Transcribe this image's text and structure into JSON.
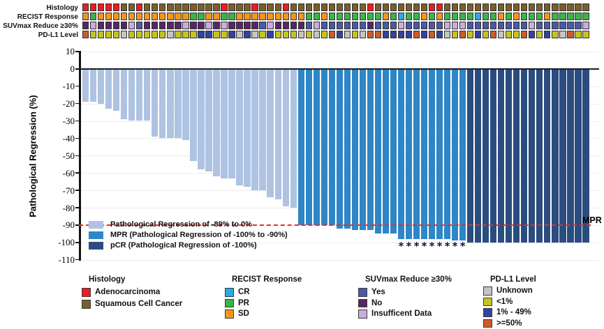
{
  "figure": {
    "type": "waterfall-plot-with-annotation-tracks"
  },
  "annotation_tracks": {
    "rows": [
      {
        "id": "histology",
        "label": "Histology",
        "values": [
          "A",
          "A",
          "A",
          "A",
          "A",
          "S",
          "S",
          "A",
          "S",
          "S",
          "S",
          "S",
          "S",
          "S",
          "S",
          "S",
          "S",
          "S",
          "A",
          "S",
          "S",
          "S",
          "A",
          "S",
          "S",
          "S",
          "A",
          "S",
          "S",
          "S",
          "S",
          "S",
          "S",
          "S",
          "S",
          "S",
          "S",
          "A",
          "S",
          "S",
          "S",
          "S",
          "S",
          "S",
          "S",
          "A",
          "A",
          "S",
          "S",
          "S",
          "S",
          "S",
          "S",
          "S",
          "S",
          "S",
          "S",
          "S",
          "S",
          "S",
          "S",
          "S",
          "S",
          "S",
          "S",
          "S"
        ]
      },
      {
        "id": "recist",
        "label": "RECIST Response",
        "values": [
          "SD",
          "PR",
          "SD",
          "SD",
          "SD",
          "SD",
          "SD",
          "SD",
          "SD",
          "SD",
          "SD",
          "SD",
          "SD",
          "SD",
          "PR",
          "PR",
          "SD",
          "SD",
          "PR",
          "PR",
          "SD",
          "SD",
          "SD",
          "SD",
          "SD",
          "SD",
          "SD",
          "SD",
          "SD",
          "PR",
          "PR",
          "SD",
          "PR",
          "PR",
          "PR",
          "PR",
          "PR",
          "PR",
          "PR",
          "SD",
          "PR",
          "CR",
          "PR",
          "PR",
          "SD",
          "PR",
          "SD",
          "PR",
          "PR",
          "PR",
          "PR",
          "CR",
          "PR",
          "PR",
          "SD",
          "PR",
          "SD",
          "PR",
          "PR",
          "PR",
          "SD",
          "PR",
          "PR",
          "PR",
          "PR",
          "PR"
        ]
      },
      {
        "id": "suvmax",
        "label": "SUVmax Reduce ≥30%",
        "values": [
          "N",
          "I",
          "N",
          "N",
          "N",
          "N",
          "I",
          "Y",
          "N",
          "N",
          "N",
          "N",
          "N",
          "I",
          "N",
          "N",
          "I",
          "N",
          "I",
          "N",
          "N",
          "N",
          "N",
          "Y",
          "I",
          "N",
          "N",
          "N",
          "N",
          "Y",
          "I",
          "Y",
          "Y",
          "Y",
          "Y",
          "Y",
          "Y",
          "N",
          "Y",
          "Y",
          "Y",
          "I",
          "Y",
          "Y",
          "Y",
          "Y",
          "Y",
          "I",
          "I",
          "I",
          "Y",
          "Y",
          "Y",
          "Y",
          "Y",
          "Y",
          "Y",
          "Y",
          "I",
          "Y",
          "Y",
          "Y",
          "Y",
          "Y",
          "Y",
          "I"
        ]
      },
      {
        "id": "pdl1",
        "label": "PD-L1 Level",
        "values": [
          "H",
          "L",
          "L",
          "L",
          "L",
          "U",
          "L",
          "L",
          "L",
          "L",
          "L",
          "U",
          "L",
          "L",
          "L",
          "M",
          "M",
          "L",
          "L",
          "M",
          "U",
          "M",
          "U",
          "L",
          "M",
          "L",
          "L",
          "L",
          "U",
          "L",
          "U",
          "L",
          "H",
          "M",
          "U",
          "L",
          "U",
          "H",
          "H",
          "M",
          "M",
          "M",
          "M",
          "H",
          "M",
          "H",
          "M",
          "U",
          "L",
          "H",
          "L",
          "M",
          "L",
          "H",
          "U",
          "L",
          "L",
          "H",
          "M",
          "L",
          "M",
          "L",
          "U",
          "H",
          "L",
          "L"
        ]
      }
    ],
    "palettes": {
      "histology": {
        "A": "#EC1C24",
        "S": "#7B5F2B"
      },
      "recist": {
        "CR": "#29ABE2",
        "PR": "#39B54A",
        "SD": "#F7941D"
      },
      "suvmax": {
        "Y": "#4A5AA8",
        "N": "#562765",
        "I": "#C9ADDC"
      },
      "pdl1": {
        "U": "#C4C4C4",
        "L": "#C3C41E",
        "M": "#33429E",
        "H": "#CE5B2B"
      }
    }
  },
  "chart_data": {
    "type": "bar",
    "title": "",
    "xlabel": "",
    "ylabel": "Pathological Regression (%)",
    "ylim": [
      10,
      -110
    ],
    "yticks": [
      10,
      0,
      -10,
      -20,
      -30,
      -40,
      -50,
      -60,
      -70,
      -80,
      -90,
      -100,
      -110
    ],
    "grid": true,
    "n_patients": 66,
    "values": [
      -19,
      -19,
      -20,
      -23,
      -24,
      -29,
      -30,
      -30,
      -30,
      -39,
      -40,
      -40,
      -40,
      -41,
      -53,
      -58,
      -59,
      -62,
      -63,
      -63,
      -67,
      -68,
      -70,
      -70,
      -74,
      -75,
      -79,
      -80,
      -90,
      -90,
      -90,
      -90,
      -90,
      -92,
      -92,
      -93,
      -93,
      -93,
      -95,
      -95,
      -95,
      -98,
      -98,
      -98,
      -98,
      -98,
      -98,
      -98,
      -99,
      -99,
      -100,
      -100,
      -100,
      -100,
      -100,
      -100,
      -100,
      -100,
      -100,
      -100,
      -100,
      -100,
      -100,
      -100,
      -100,
      -100
    ],
    "group_thresholds": {
      "mpr_max": -90,
      "pcr_value": -100
    },
    "bar_colors": {
      "partial": "#AEC3E2",
      "mpr": "#2E86C6",
      "pcr": "#2B4C7E"
    },
    "legend": [
      {
        "key": "partial",
        "label": "Pathological Regression of -89% to 0%",
        "color": "#AEC3E2"
      },
      {
        "key": "mpr",
        "label": "MPR (Pathological Regression of -100% to -90%)",
        "color": "#2E86C6"
      },
      {
        "key": "pcr",
        "label": "pCR (Pathological Regression of -100%)",
        "color": "#2B4C7E"
      }
    ],
    "mpr_line": {
      "value": -90,
      "label": "MPR",
      "color": "#EE2B23",
      "style": "dashed"
    },
    "asterisk_bars": [
      42,
      43,
      44,
      45,
      46,
      47,
      48,
      49,
      50
    ],
    "asterisk_symbol": "*"
  },
  "bottom_legends": [
    {
      "title": "Histology",
      "items": [
        {
          "label": "Adenocarcinoma",
          "color": "#EC1C24"
        },
        {
          "label": "Squamous Cell Cancer",
          "color": "#7B5F2B"
        }
      ]
    },
    {
      "title": "RECIST Response",
      "items": [
        {
          "label": "CR",
          "color": "#29ABE2"
        },
        {
          "label": "PR",
          "color": "#39B54A"
        },
        {
          "label": "SD",
          "color": "#F7941D"
        }
      ]
    },
    {
      "title": "SUVmax Reduce ≥30%",
      "items": [
        {
          "label": "Yes",
          "color": "#4A5AA8"
        },
        {
          "label": "No",
          "color": "#562765"
        },
        {
          "label": "Insufficent Data",
          "color": "#C9ADDC"
        }
      ]
    },
    {
      "title": "PD-L1 Level",
      "items": [
        {
          "label": "Unknown",
          "color": "#C4C4C4"
        },
        {
          "label": "<1%",
          "color": "#C3C41E"
        },
        {
          "label": "1% - 49%",
          "color": "#33429E"
        },
        {
          "label": ">=50%",
          "color": "#CE5B2B"
        }
      ]
    }
  ]
}
